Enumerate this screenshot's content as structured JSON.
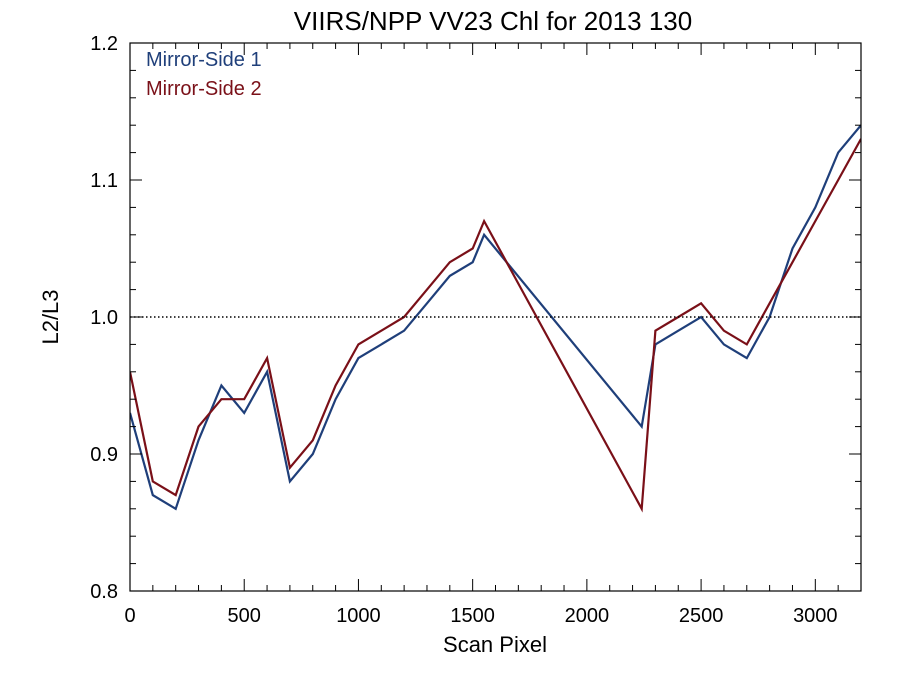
{
  "chart_data": {
    "type": "line",
    "title": "VIIRS/NPP VV23 Chl for 2013 130",
    "xlabel": "Scan Pixel",
    "ylabel": "L2/L3",
    "xlim": [
      0,
      3200
    ],
    "ylim": [
      0.8,
      1.2
    ],
    "xticks": [
      0,
      500,
      1000,
      1500,
      2000,
      2500,
      3000
    ],
    "yticks": [
      0.8,
      0.9,
      1.0,
      1.1,
      1.2
    ],
    "xtick_labels": [
      "0",
      "500",
      "1000",
      "1500",
      "2000",
      "2500",
      "3000"
    ],
    "ytick_labels": [
      "0.8",
      "0.9",
      "1.0",
      "1.1",
      "1.2"
    ],
    "reference_line": {
      "y": 1.0,
      "style": "dotted",
      "color": "#000000"
    },
    "grid": false,
    "legend_position": "top-left",
    "series": [
      {
        "name": "Mirror-Side 1",
        "color": "#1f3f7a",
        "x": [
          0,
          100,
          200,
          300,
          400,
          500,
          600,
          700,
          800,
          900,
          1000,
          1100,
          1200,
          1300,
          1400,
          1500,
          1550,
          2240,
          2300,
          2400,
          2500,
          2600,
          2700,
          2800,
          2900,
          3000,
          3100,
          3200
        ],
        "y": [
          0.93,
          0.87,
          0.86,
          0.91,
          0.95,
          0.93,
          0.96,
          0.88,
          0.9,
          0.94,
          0.97,
          0.98,
          0.99,
          1.01,
          1.03,
          1.04,
          1.06,
          0.92,
          0.98,
          0.99,
          1.0,
          0.98,
          0.97,
          1.0,
          1.05,
          1.08,
          1.12,
          1.14
        ]
      },
      {
        "name": "Mirror-Side 2",
        "color": "#7a1018",
        "x": [
          0,
          100,
          200,
          300,
          400,
          500,
          600,
          700,
          800,
          900,
          1000,
          1100,
          1200,
          1300,
          1400,
          1500,
          1550,
          2240,
          2300,
          2400,
          2500,
          2600,
          2700,
          2800,
          2900,
          3000,
          3100,
          3200
        ],
        "y": [
          0.96,
          0.88,
          0.87,
          0.92,
          0.94,
          0.94,
          0.97,
          0.89,
          0.91,
          0.95,
          0.98,
          0.99,
          1.0,
          1.02,
          1.04,
          1.05,
          1.07,
          0.86,
          0.99,
          1.0,
          1.01,
          0.99,
          0.98,
          1.01,
          1.04,
          1.07,
          1.1,
          1.13
        ]
      }
    ]
  }
}
